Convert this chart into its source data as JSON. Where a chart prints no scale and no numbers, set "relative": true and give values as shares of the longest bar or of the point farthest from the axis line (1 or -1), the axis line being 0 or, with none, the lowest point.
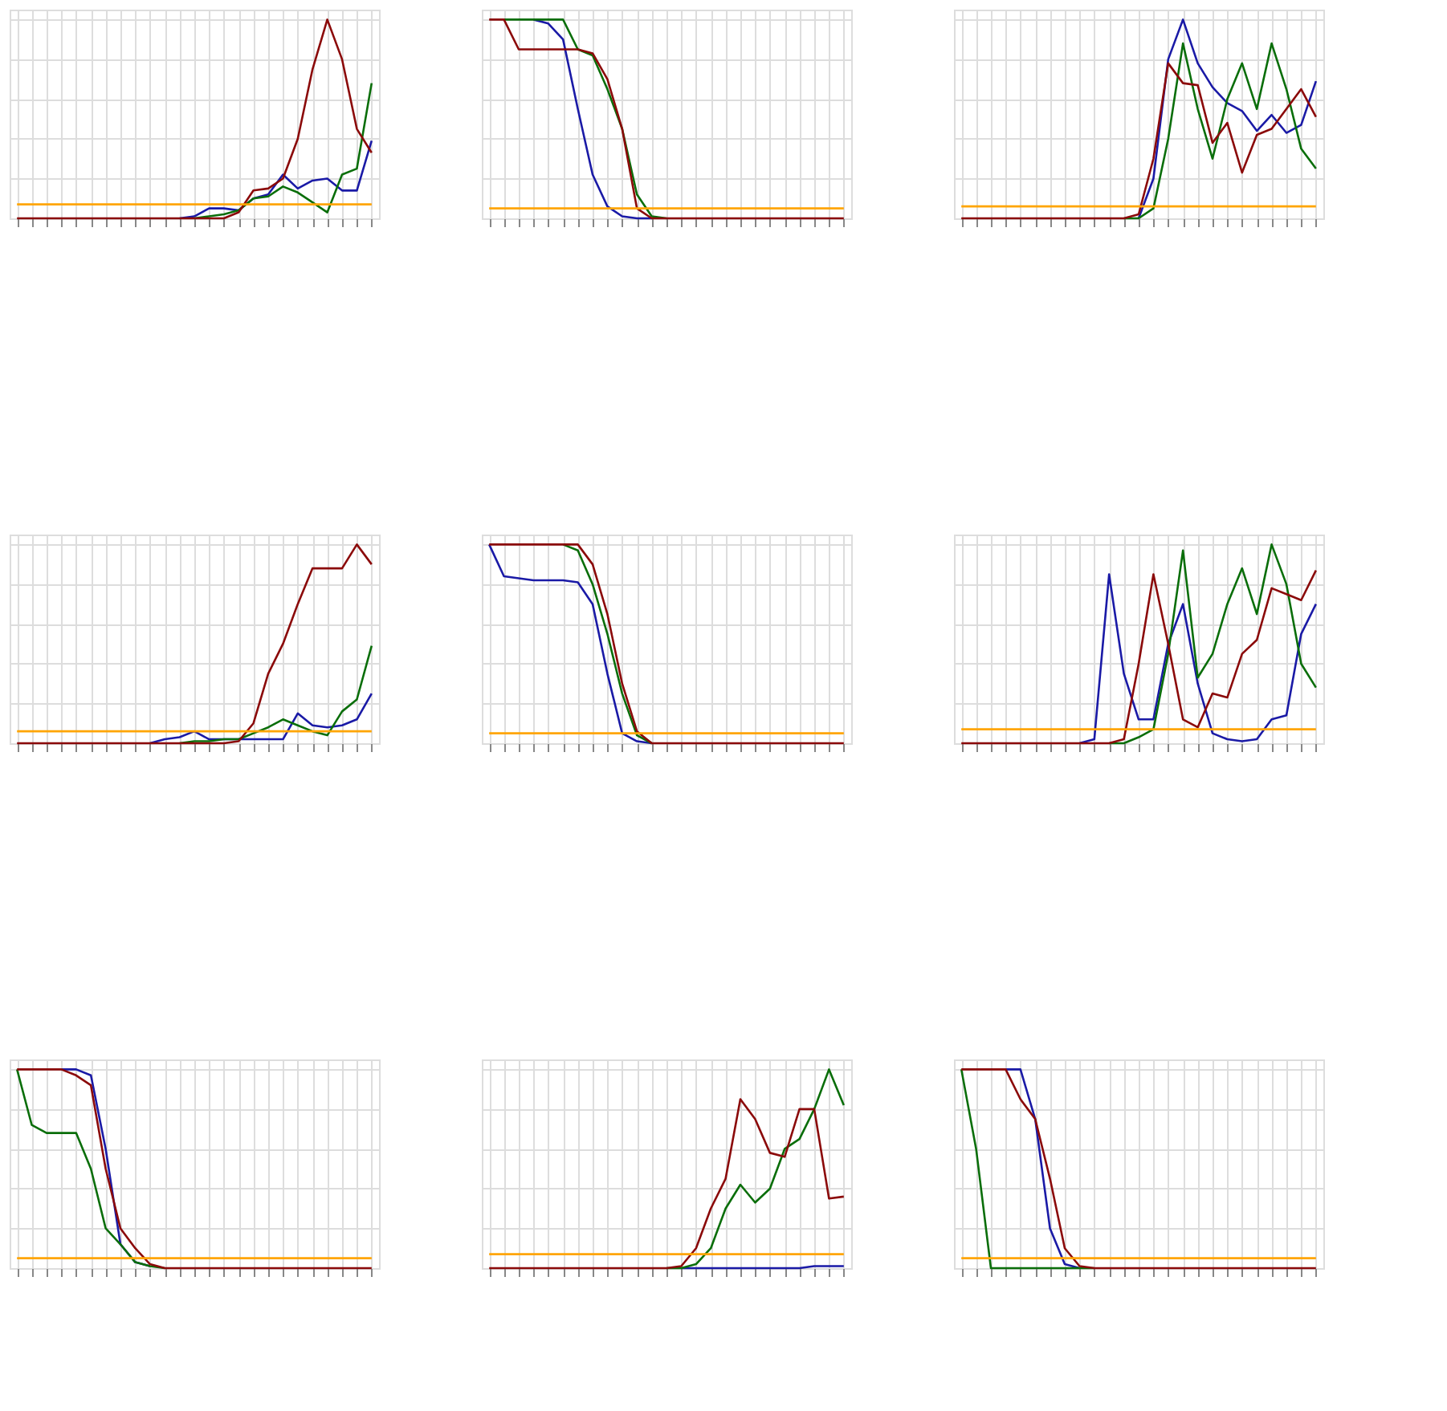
{
  "chart_data": [
    {
      "type": "line",
      "relative": true,
      "grid": true,
      "tick_labels": false,
      "categories": [
        null,
        null,
        null,
        null,
        null,
        null,
        null,
        null,
        null,
        null,
        null,
        null,
        null,
        null,
        null,
        null,
        null,
        null,
        null,
        null,
        null,
        null,
        null,
        null,
        null
      ],
      "series": [
        {
          "color": "#1a1aa6",
          "values": [
            null,
            null,
            null,
            null,
            null,
            null,
            null,
            null,
            null,
            null,
            null,
            0,
            0.01,
            0.05,
            0.05,
            0.04,
            0.1,
            0.12,
            0.22,
            0.15,
            0.19,
            0.2,
            0.14,
            0.14,
            0.39
          ]
        },
        {
          "color": "#0a6e0a",
          "values": [
            null,
            null,
            null,
            null,
            null,
            null,
            null,
            null,
            null,
            null,
            null,
            null,
            0,
            0.01,
            0.02,
            0.04,
            0.1,
            0.11,
            0.16,
            0.13,
            0.08,
            0.03,
            0.22,
            0.25,
            0.68
          ]
        },
        {
          "color": "#8b0a0a",
          "values": [
            0,
            0,
            0,
            0,
            0,
            0,
            0,
            0,
            0,
            0,
            0,
            0,
            0,
            0,
            0,
            0.03,
            0.14,
            0.15,
            0.2,
            0.4,
            0.75,
            1.0,
            0.8,
            0.45,
            0.33
          ]
        },
        {
          "color": "#ffa500",
          "values": [
            0.07,
            0.07,
            0.07,
            0.07,
            0.07,
            0.07,
            0.07,
            0.07,
            0.07,
            0.07,
            0.07,
            0.07,
            0.07,
            0.07,
            0.07,
            0.07,
            0.07,
            0.07,
            0.07,
            0.07,
            0.07,
            0.07,
            0.07,
            0.07,
            0.07
          ]
        }
      ]
    },
    {
      "type": "line",
      "relative": true,
      "grid": true,
      "tick_labels": false,
      "categories": [
        null,
        null,
        null,
        null,
        null,
        null,
        null,
        null,
        null,
        null,
        null,
        null,
        null,
        null,
        null,
        null,
        null,
        null,
        null,
        null,
        null,
        null,
        null,
        null,
        null
      ],
      "series": [
        {
          "color": "#1a1aa6",
          "values": [
            null,
            null,
            null,
            1,
            0.98,
            0.9,
            0.55,
            0.22,
            0.06,
            0.01,
            0,
            0,
            null,
            null,
            null,
            null,
            null,
            null,
            null,
            null,
            null,
            null,
            null,
            null,
            null
          ]
        },
        {
          "color": "#0a6e0a",
          "values": [
            null,
            1,
            1,
            1,
            1,
            1,
            0.85,
            0.82,
            0.65,
            0.45,
            0.12,
            0.01,
            0,
            null,
            null,
            null,
            null,
            null,
            null,
            null,
            null,
            null,
            null,
            null,
            null
          ]
        },
        {
          "color": "#8b0a0a",
          "values": [
            1,
            1,
            0.85,
            0.85,
            0.85,
            0.85,
            0.85,
            0.83,
            0.7,
            0.45,
            0.05,
            0,
            0,
            0,
            0,
            0,
            0,
            0,
            0,
            0,
            0,
            0,
            0,
            0,
            0
          ]
        },
        {
          "color": "#ffa500",
          "values": [
            0.05,
            0.05,
            0.05,
            0.05,
            0.05,
            0.05,
            0.05,
            0.05,
            0.05,
            0.05,
            0.05,
            0.05,
            0.05,
            0.05,
            0.05,
            0.05,
            0.05,
            0.05,
            0.05,
            0.05,
            0.05,
            0.05,
            0.05,
            0.05,
            0.05
          ]
        }
      ]
    },
    {
      "type": "line",
      "relative": true,
      "grid": true,
      "tick_labels": false,
      "categories": [
        null,
        null,
        null,
        null,
        null,
        null,
        null,
        null,
        null,
        null,
        null,
        null,
        null,
        null,
        null,
        null,
        null,
        null,
        null,
        null,
        null,
        null,
        null,
        null,
        null
      ],
      "series": [
        {
          "color": "#1a1aa6",
          "values": [
            null,
            null,
            null,
            null,
            null,
            null,
            null,
            null,
            null,
            null,
            null,
            null,
            0,
            0.2,
            0.8,
            1.0,
            0.78,
            0.66,
            0.58,
            0.54,
            0.44,
            0.52,
            0.43,
            0.47,
            0.69
          ]
        },
        {
          "color": "#0a6e0a",
          "values": [
            null,
            null,
            null,
            null,
            null,
            null,
            null,
            null,
            null,
            null,
            null,
            0,
            0,
            0.05,
            0.4,
            0.88,
            0.55,
            0.3,
            0.6,
            0.78,
            0.55,
            0.88,
            0.65,
            0.35,
            0.25
          ]
        },
        {
          "color": "#8b0a0a",
          "values": [
            0,
            0,
            0,
            0,
            0,
            0,
            0,
            0,
            0,
            0,
            0,
            0,
            0.02,
            0.3,
            0.78,
            0.68,
            0.67,
            0.38,
            0.48,
            0.23,
            0.42,
            0.45,
            0.55,
            0.65,
            0.51
          ]
        },
        {
          "color": "#ffa500",
          "values": [
            0.06,
            0.06,
            0.06,
            0.06,
            0.06,
            0.06,
            0.06,
            0.06,
            0.06,
            0.06,
            0.06,
            0.06,
            0.06,
            0.06,
            0.06,
            0.06,
            0.06,
            0.06,
            0.06,
            0.06,
            0.06,
            0.06,
            0.06,
            0.06,
            0.06
          ]
        }
      ]
    },
    {
      "type": "line",
      "relative": true,
      "grid": true,
      "tick_labels": false,
      "categories": [
        null,
        null,
        null,
        null,
        null,
        null,
        null,
        null,
        null,
        null,
        null,
        null,
        null,
        null,
        null,
        null,
        null,
        null,
        null,
        null,
        null,
        null,
        null,
        null,
        null
      ],
      "series": [
        {
          "color": "#1a1aa6",
          "values": [
            null,
            null,
            null,
            null,
            null,
            null,
            null,
            null,
            null,
            0,
            0.02,
            0.03,
            0.06,
            0.02,
            0.02,
            0.02,
            0.02,
            0.02,
            0.02,
            0.15,
            0.09,
            0.08,
            0.09,
            0.12,
            0.25
          ]
        },
        {
          "color": "#0a6e0a",
          "values": [
            null,
            null,
            null,
            null,
            null,
            null,
            null,
            null,
            null,
            null,
            null,
            0,
            0.01,
            0.01,
            0.02,
            0.02,
            0.05,
            0.08,
            0.12,
            0.09,
            0.06,
            0.04,
            0.16,
            0.22,
            0.49
          ]
        },
        {
          "color": "#8b0a0a",
          "values": [
            0,
            0,
            0,
            0,
            0,
            0,
            0,
            0,
            0,
            0,
            0,
            0,
            0,
            0,
            0,
            0.01,
            0.1,
            0.35,
            0.5,
            0.7,
            0.88,
            0.88,
            0.88,
            1.0,
            0.9
          ]
        },
        {
          "color": "#ffa500",
          "values": [
            0.06,
            0.06,
            0.06,
            0.06,
            0.06,
            0.06,
            0.06,
            0.06,
            0.06,
            0.06,
            0.06,
            0.06,
            0.06,
            0.06,
            0.06,
            0.06,
            0.06,
            0.06,
            0.06,
            0.06,
            0.06,
            0.06,
            0.06,
            0.06,
            0.06
          ]
        }
      ]
    },
    {
      "type": "line",
      "relative": true,
      "grid": true,
      "tick_labels": false,
      "categories": [
        null,
        null,
        null,
        null,
        null,
        null,
        null,
        null,
        null,
        null,
        null,
        null,
        null,
        null,
        null,
        null,
        null,
        null,
        null,
        null,
        null,
        null,
        null,
        null,
        null
      ],
      "series": [
        {
          "color": "#1a1aa6",
          "values": [
            1,
            0.84,
            0.83,
            0.82,
            0.82,
            0.82,
            0.81,
            0.7,
            0.35,
            0.05,
            0.01,
            0,
            null,
            null,
            null,
            null,
            null,
            null,
            null,
            null,
            null,
            null,
            null,
            null,
            null
          ]
        },
        {
          "color": "#0a6e0a",
          "values": [
            null,
            null,
            null,
            null,
            null,
            1,
            0.97,
            0.8,
            0.55,
            0.25,
            0.04,
            0,
            null,
            null,
            null,
            null,
            null,
            null,
            null,
            null,
            null,
            null,
            null,
            null,
            null
          ]
        },
        {
          "color": "#8b0a0a",
          "values": [
            1,
            1,
            1,
            1,
            1,
            1,
            1,
            0.9,
            0.65,
            0.3,
            0.06,
            0,
            0,
            0,
            0,
            0,
            0,
            0,
            0,
            0,
            0,
            0,
            0,
            0,
            0
          ]
        },
        {
          "color": "#ffa500",
          "values": [
            0.05,
            0.05,
            0.05,
            0.05,
            0.05,
            0.05,
            0.05,
            0.05,
            0.05,
            0.05,
            0.05,
            0.05,
            0.05,
            0.05,
            0.05,
            0.05,
            0.05,
            0.05,
            0.05,
            0.05,
            0.05,
            0.05,
            0.05,
            0.05,
            0.05
          ]
        }
      ]
    },
    {
      "type": "line",
      "relative": true,
      "grid": true,
      "tick_labels": false,
      "categories": [
        null,
        null,
        null,
        null,
        null,
        null,
        null,
        null,
        null,
        null,
        null,
        null,
        null,
        null,
        null,
        null,
        null,
        null,
        null,
        null,
        null,
        null,
        null,
        null,
        null
      ],
      "series": [
        {
          "color": "#1a1aa6",
          "values": [
            null,
            null,
            null,
            null,
            null,
            null,
            null,
            null,
            0,
            0.02,
            0.85,
            0.35,
            0.12,
            0.12,
            0.5,
            0.7,
            0.3,
            0.05,
            0.02,
            0.01,
            0.02,
            0.12,
            0.14,
            0.55,
            0.7
          ]
        },
        {
          "color": "#0a6e0a",
          "values": [
            null,
            null,
            null,
            null,
            null,
            null,
            null,
            null,
            null,
            null,
            0,
            0,
            0.03,
            0.07,
            0.45,
            0.97,
            0.33,
            0.45,
            0.7,
            0.88,
            0.65,
            1.0,
            0.8,
            0.4,
            0.28
          ]
        },
        {
          "color": "#8b0a0a",
          "values": [
            0,
            0,
            0,
            0,
            0,
            0,
            0,
            0,
            0,
            0,
            0,
            0.02,
            0.4,
            0.85,
            0.5,
            0.12,
            0.08,
            0.25,
            0.23,
            0.45,
            0.52,
            0.78,
            0.75,
            0.72,
            0.87
          ]
        },
        {
          "color": "#ffa500",
          "values": [
            0.07,
            0.07,
            0.07,
            0.07,
            0.07,
            0.07,
            0.07,
            0.07,
            0.07,
            0.07,
            0.07,
            0.07,
            0.07,
            0.07,
            0.07,
            0.07,
            0.07,
            0.07,
            0.07,
            0.07,
            0.07,
            0.07,
            0.07,
            0.07,
            0.07
          ]
        }
      ]
    },
    {
      "type": "line",
      "relative": true,
      "grid": true,
      "tick_labels": false,
      "categories": [
        null,
        null,
        null,
        null,
        null,
        null,
        null,
        null,
        null,
        null,
        null,
        null,
        null,
        null,
        null,
        null,
        null,
        null,
        null,
        null,
        null,
        null,
        null,
        null,
        null
      ],
      "series": [
        {
          "color": "#1a1aa6",
          "values": [
            null,
            null,
            null,
            1,
            1,
            0.97,
            0.6,
            0.12,
            0.03,
            0.01,
            null,
            null,
            null,
            null,
            null,
            null,
            null,
            null,
            null,
            null,
            null,
            null,
            null,
            null,
            null
          ]
        },
        {
          "color": "#0a6e0a",
          "values": [
            1,
            0.72,
            0.68,
            0.68,
            0.68,
            0.5,
            0.2,
            0.12,
            0.03,
            0.01,
            0,
            null,
            null,
            null,
            null,
            null,
            null,
            null,
            null,
            null,
            null,
            null,
            null,
            null,
            null
          ]
        },
        {
          "color": "#8b0a0a",
          "values": [
            1,
            1,
            1,
            1,
            0.97,
            0.92,
            0.5,
            0.2,
            0.1,
            0.02,
            0,
            0,
            0,
            0,
            0,
            0,
            0,
            0,
            0,
            0,
            0,
            0,
            0,
            0,
            0
          ]
        },
        {
          "color": "#ffa500",
          "values": [
            0.05,
            0.05,
            0.05,
            0.05,
            0.05,
            0.05,
            0.05,
            0.05,
            0.05,
            0.05,
            0.05,
            0.05,
            0.05,
            0.05,
            0.05,
            0.05,
            0.05,
            0.05,
            0.05,
            0.05,
            0.05,
            0.05,
            0.05,
            0.05,
            0.05
          ]
        }
      ]
    },
    {
      "type": "line",
      "relative": true,
      "grid": true,
      "tick_labels": false,
      "categories": [
        null,
        null,
        null,
        null,
        null,
        null,
        null,
        null,
        null,
        null,
        null,
        null,
        null,
        null,
        null,
        null,
        null,
        null,
        null,
        null,
        null,
        null,
        null,
        null,
        null
      ],
      "series": [
        {
          "color": "#1a1aa6",
          "values": [
            null,
            null,
            null,
            null,
            null,
            null,
            null,
            null,
            null,
            null,
            null,
            null,
            null,
            0,
            0,
            0,
            0,
            0,
            0,
            0,
            0,
            0,
            0.01,
            0.01,
            0.01
          ]
        },
        {
          "color": "#0a6e0a",
          "values": [
            null,
            null,
            null,
            null,
            null,
            null,
            null,
            null,
            null,
            null,
            null,
            null,
            0,
            0,
            0.02,
            0.1,
            0.3,
            0.42,
            0.33,
            0.4,
            0.6,
            0.65,
            0.8,
            1.0,
            0.82
          ]
        },
        {
          "color": "#8b0a0a",
          "values": [
            0,
            0,
            0,
            0,
            0,
            0,
            0,
            0,
            0,
            0,
            0,
            0,
            0,
            0.01,
            0.1,
            0.3,
            0.45,
            0.85,
            0.75,
            0.58,
            0.56,
            0.8,
            0.8,
            0.35,
            0.36
          ]
        },
        {
          "color": "#ffa500",
          "values": [
            0.07,
            0.07,
            0.07,
            0.07,
            0.07,
            0.07,
            0.07,
            0.07,
            0.07,
            0.07,
            0.07,
            0.07,
            0.07,
            0.07,
            0.07,
            0.07,
            0.07,
            0.07,
            0.07,
            0.07,
            0.07,
            0.07,
            0.07,
            0.07,
            0.07
          ]
        }
      ]
    },
    {
      "type": "line",
      "relative": true,
      "grid": true,
      "tick_labels": false,
      "categories": [
        null,
        null,
        null,
        null,
        null,
        null,
        null,
        null,
        null,
        null,
        null,
        null,
        null,
        null,
        null,
        null,
        null,
        null,
        null,
        null,
        null,
        null,
        null,
        null,
        null
      ],
      "series": [
        {
          "color": "#1a1aa6",
          "values": [
            null,
            null,
            null,
            1,
            1,
            0.75,
            0.2,
            0.02,
            0,
            null,
            null,
            null,
            null,
            null,
            null,
            null,
            null,
            null,
            null,
            null,
            null,
            null,
            null,
            null,
            null
          ]
        },
        {
          "color": "#0a6e0a",
          "values": [
            1,
            0.6,
            0,
            0,
            0,
            0,
            0,
            0,
            0,
            0,
            null,
            null,
            null,
            null,
            null,
            null,
            null,
            null,
            null,
            null,
            null,
            null,
            null,
            null,
            null
          ]
        },
        {
          "color": "#8b0a0a",
          "values": [
            1,
            1,
            1,
            1,
            0.85,
            0.75,
            0.45,
            0.1,
            0.01,
            0,
            0,
            0,
            0,
            0,
            0,
            0,
            0,
            0,
            0,
            0,
            0,
            0,
            0,
            0,
            0
          ]
        },
        {
          "color": "#ffa500",
          "values": [
            0.05,
            0.05,
            0.05,
            0.05,
            0.05,
            0.05,
            0.05,
            0.05,
            0.05,
            0.05,
            0.05,
            0.05,
            0.05,
            0.05,
            0.05,
            0.05,
            0.05,
            0.05,
            0.05,
            0.05,
            0.05,
            0.05,
            0.05,
            0.05,
            0.05
          ]
        }
      ]
    }
  ]
}
